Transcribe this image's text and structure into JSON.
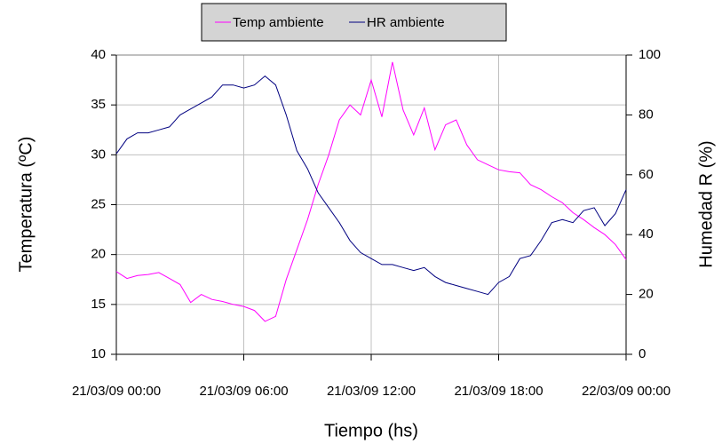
{
  "chart_data": {
    "type": "line",
    "xlabel": "Tiempo (hs)",
    "ylabel": "Temperatura (ºC)",
    "y2label": "Humedad R (%)",
    "x": [
      0,
      0.5,
      1,
      1.5,
      2,
      2.5,
      3,
      3.5,
      4,
      4.5,
      5,
      5.5,
      6,
      6.5,
      7,
      7.5,
      8,
      8.5,
      9,
      9.5,
      10,
      10.5,
      11,
      11.5,
      12,
      12.5,
      13,
      13.5,
      14,
      14.5,
      15,
      15.5,
      16,
      16.5,
      17,
      17.5,
      18,
      18.5,
      19,
      19.5,
      20,
      20.5,
      21,
      21.5,
      22,
      22.5,
      23,
      23.5,
      24
    ],
    "series": [
      {
        "name": "Temp ambiente",
        "color": "#ff00ff",
        "axis": "y",
        "values": [
          18.3,
          17.6,
          17.9,
          18.0,
          18.2,
          17.6,
          17.0,
          15.2,
          16.0,
          15.5,
          15.3,
          15.0,
          14.8,
          14.4,
          13.3,
          13.8,
          17.5,
          20.5,
          23.5,
          27.0,
          30.0,
          33.5,
          35.0,
          34.0,
          37.5,
          33.8,
          39.3,
          34.5,
          32.0,
          34.7,
          30.5,
          33.0,
          33.5,
          31.0,
          29.5,
          29.0,
          28.5,
          28.3,
          28.2,
          27.0,
          26.5,
          25.8,
          25.2,
          24.2,
          23.5,
          22.7,
          22.0,
          21.0,
          19.5
        ]
      },
      {
        "name": "HR ambiente",
        "color": "#000080",
        "axis": "y2",
        "values": [
          67,
          72,
          74,
          74,
          75,
          76,
          80,
          82,
          84,
          86,
          90,
          90,
          89,
          90,
          93,
          90,
          80,
          68,
          62,
          54,
          49,
          44,
          38,
          34,
          32,
          30,
          30,
          29,
          28,
          29,
          26,
          24,
          23,
          22,
          21,
          20,
          24,
          26,
          32,
          33,
          38,
          44,
          45,
          44,
          48,
          49,
          43,
          47,
          55
        ]
      }
    ],
    "xlim": [
      0,
      24
    ],
    "xticks": [
      {
        "value": 0,
        "label": "21/03/09 00:00"
      },
      {
        "value": 6,
        "label": "21/03/09 06:00"
      },
      {
        "value": 12,
        "label": "21/03/09 12:00"
      },
      {
        "value": 18,
        "label": "21/03/09 18:00"
      },
      {
        "value": 24,
        "label": "22/03/09 00:00"
      }
    ],
    "ylim": [
      10,
      40
    ],
    "yticks": [
      10,
      15,
      20,
      25,
      30,
      35,
      40
    ],
    "y2lim": [
      0,
      100
    ],
    "y2ticks": [
      0,
      20,
      40,
      60,
      80,
      100
    ],
    "grid": true
  }
}
